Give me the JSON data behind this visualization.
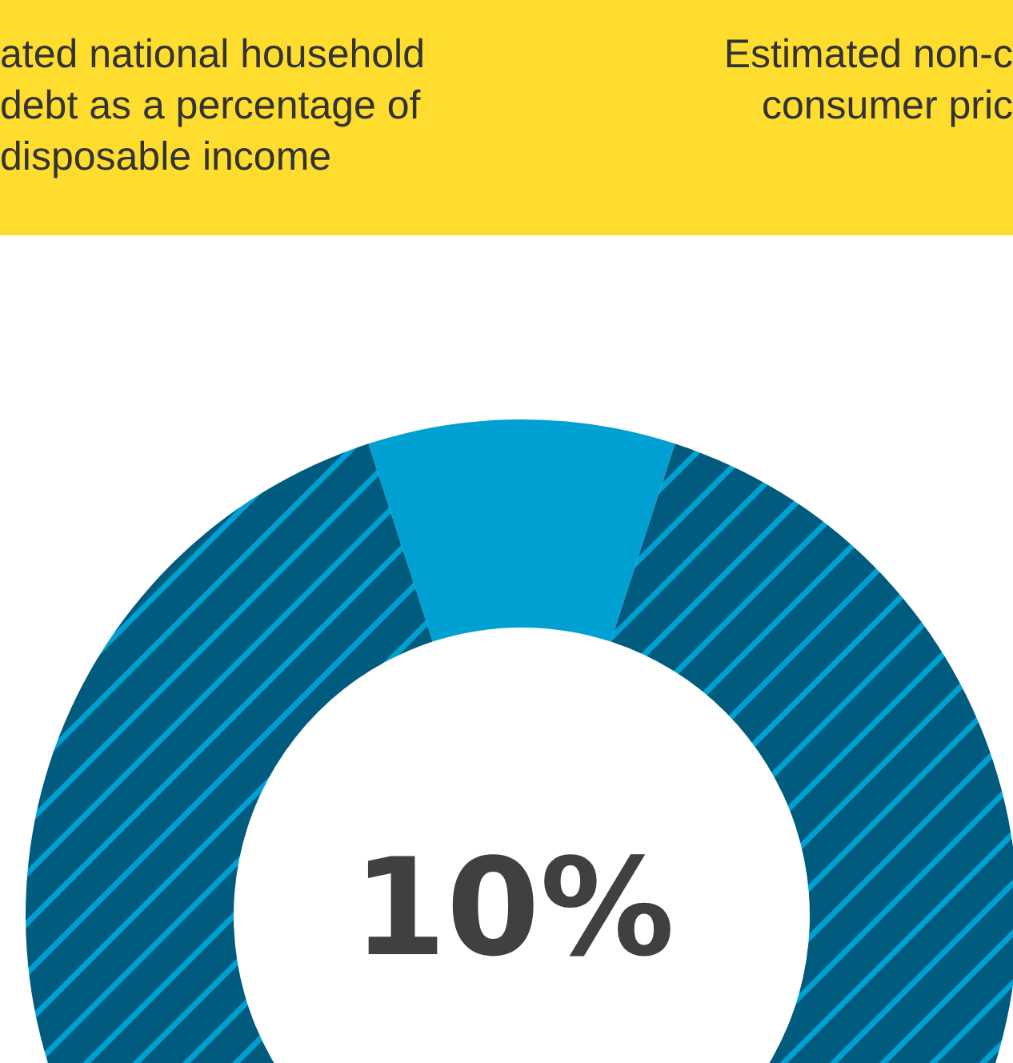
{
  "chart_data": {
    "type": "donut",
    "annotations": [
      "ated national household\ndebt as a percentage of\ndisposable income",
      "Estimated non-c\nconsumer pric",
      "10%"
    ],
    "categories": [
      null,
      null
    ],
    "values": [
      10,
      90
    ],
    "colors": [
      "#00a0d2",
      "#005b7f"
    ]
  }
}
